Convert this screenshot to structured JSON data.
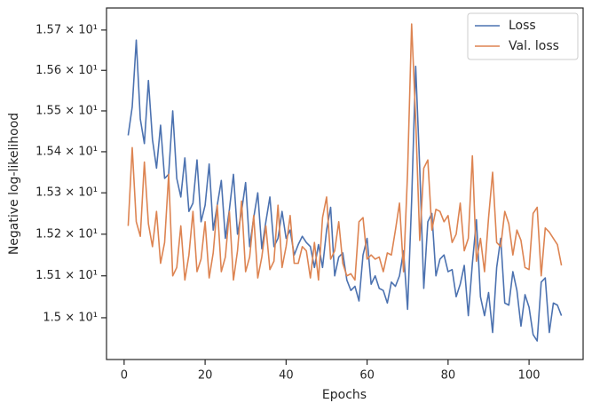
{
  "chart_data": {
    "type": "line",
    "xlabel": "Epochs",
    "ylabel": "Negative log-likelihood",
    "x": [
      1,
      2,
      3,
      4,
      5,
      6,
      7,
      8,
      9,
      10,
      11,
      12,
      13,
      14,
      15,
      16,
      17,
      18,
      19,
      20,
      21,
      22,
      23,
      24,
      25,
      26,
      27,
      28,
      29,
      30,
      31,
      32,
      33,
      34,
      35,
      36,
      37,
      38,
      39,
      40,
      41,
      42,
      43,
      44,
      45,
      46,
      47,
      48,
      49,
      50,
      51,
      52,
      53,
      54,
      55,
      56,
      57,
      58,
      59,
      60,
      61,
      62,
      63,
      64,
      65,
      66,
      67,
      68,
      69,
      70,
      71,
      72,
      73,
      74,
      75,
      76,
      77,
      78,
      79,
      80,
      81,
      82,
      83,
      84,
      85,
      86,
      87,
      88,
      89,
      90,
      91,
      92,
      93,
      94,
      95,
      96,
      97,
      98,
      99,
      100,
      101,
      102,
      103,
      104,
      105,
      106,
      107,
      108
    ],
    "series": [
      {
        "name": "Loss",
        "color": "#4c72b0",
        "values": [
          15.44,
          15.51,
          15.675,
          15.48,
          15.42,
          15.575,
          15.43,
          15.36,
          15.465,
          15.335,
          15.345,
          15.5,
          15.335,
          15.29,
          15.385,
          15.255,
          15.275,
          15.38,
          15.23,
          15.27,
          15.37,
          15.21,
          15.27,
          15.33,
          15.19,
          15.26,
          15.345,
          15.2,
          15.255,
          15.325,
          15.17,
          15.24,
          15.3,
          15.165,
          15.23,
          15.29,
          15.17,
          15.19,
          15.255,
          15.19,
          15.21,
          15.15,
          15.175,
          15.195,
          15.18,
          15.17,
          15.12,
          15.175,
          15.12,
          15.21,
          15.265,
          15.1,
          15.145,
          15.155,
          15.09,
          15.065,
          15.075,
          15.04,
          15.15,
          15.19,
          15.08,
          15.1,
          15.07,
          15.065,
          15.035,
          15.085,
          15.075,
          15.1,
          15.16,
          15.02,
          15.28,
          15.61,
          15.36,
          15.07,
          15.23,
          15.25,
          15.1,
          15.14,
          15.15,
          15.11,
          15.115,
          15.05,
          15.08,
          15.125,
          15.005,
          15.13,
          15.235,
          15.05,
          15.005,
          15.06,
          14.965,
          15.12,
          15.19,
          15.035,
          15.03,
          15.11,
          15.065,
          14.98,
          15.055,
          15.025,
          14.96,
          14.945,
          15.085,
          15.095,
          14.965,
          15.035,
          15.03,
          15.005
        ]
      },
      {
        "name": "Val. loss",
        "color": "#dd8452",
        "values": [
          15.22,
          15.41,
          15.23,
          15.195,
          15.375,
          15.225,
          15.17,
          15.255,
          15.13,
          15.18,
          15.345,
          15.1,
          15.12,
          15.22,
          15.09,
          15.15,
          15.255,
          15.11,
          15.14,
          15.23,
          15.095,
          15.155,
          15.27,
          15.11,
          15.145,
          15.255,
          15.09,
          15.16,
          15.28,
          15.11,
          15.145,
          15.245,
          15.095,
          15.145,
          15.22,
          15.115,
          15.135,
          15.27,
          15.12,
          15.17,
          15.245,
          15.13,
          15.13,
          15.17,
          15.16,
          15.095,
          15.18,
          15.09,
          15.24,
          15.29,
          15.14,
          15.16,
          15.23,
          15.13,
          15.1,
          15.105,
          15.09,
          15.23,
          15.24,
          15.14,
          15.15,
          15.14,
          15.145,
          15.11,
          15.155,
          15.15,
          15.21,
          15.275,
          15.11,
          15.35,
          15.715,
          15.48,
          15.185,
          15.36,
          15.38,
          15.21,
          15.26,
          15.255,
          15.23,
          15.245,
          15.18,
          15.2,
          15.275,
          15.16,
          15.19,
          15.39,
          15.135,
          15.19,
          15.11,
          15.24,
          15.35,
          15.18,
          15.17,
          15.255,
          15.225,
          15.15,
          15.21,
          15.185,
          15.12,
          15.115,
          15.25,
          15.265,
          15.1,
          15.215,
          15.205,
          15.19,
          15.175,
          15.125
        ]
      }
    ],
    "xlim": [
      -4.35,
      113.35
    ],
    "xticks": [
      0,
      20,
      40,
      60,
      80,
      100
    ],
    "ylim": [
      14.901,
      15.755
    ],
    "log_y": true,
    "yticks": [
      {
        "value": 15.0,
        "label": "1.5 × 10¹"
      },
      {
        "value": 15.1,
        "label": "1.51 × 10¹"
      },
      {
        "value": 15.2,
        "label": "1.52 × 10¹"
      },
      {
        "value": 15.3,
        "label": "1.53 × 10¹"
      },
      {
        "value": 15.4,
        "label": "1.54 × 10¹"
      },
      {
        "value": 15.5,
        "label": "1.55 × 10¹"
      },
      {
        "value": 15.6,
        "label": "1.56 × 10¹"
      },
      {
        "value": 15.7,
        "label": "1.57 × 10¹"
      }
    ],
    "legend": "upper right"
  }
}
